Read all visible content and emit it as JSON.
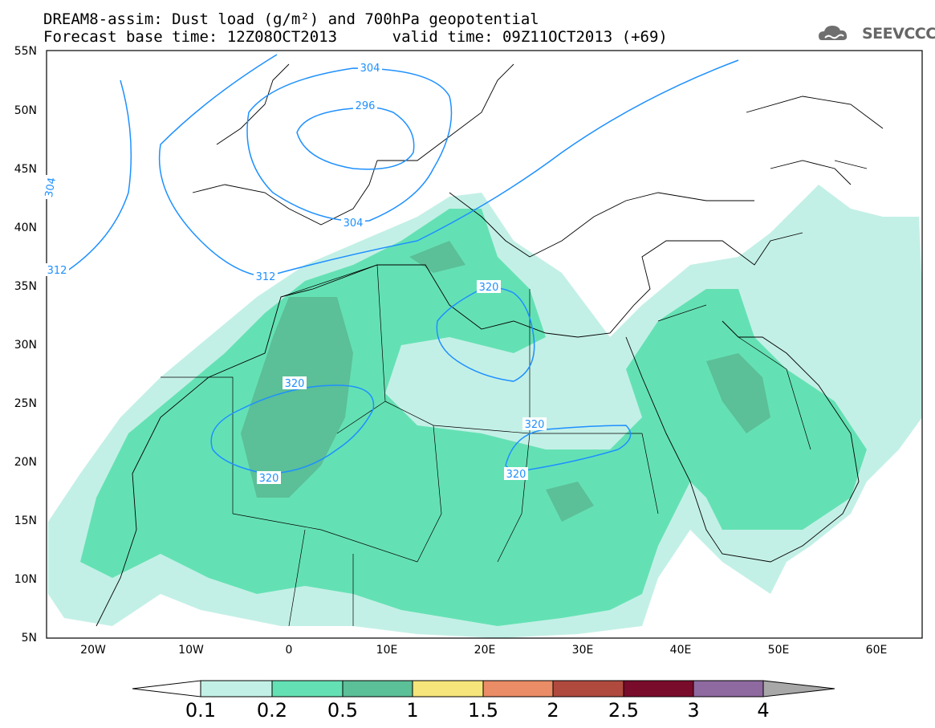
{
  "title": {
    "line1": "DREAM8-assim: Dust load (g/m²) and 700hPa geopotential",
    "line2": "Forecast base time: 12Z08OCT2013      valid time: 09Z11OCT2013 (+69)"
  },
  "logo": {
    "text": "SEEVCCC",
    "icon": "cloud-icon"
  },
  "map": {
    "lat_labels": [
      "55N",
      "50N",
      "45N",
      "40N",
      "35N",
      "30N",
      "25N",
      "20N",
      "15N",
      "10N",
      "5N"
    ],
    "lon_labels": [
      "20W",
      "10W",
      "0",
      "10E",
      "20E",
      "30E",
      "40E",
      "50E",
      "60E"
    ],
    "contour_labels": [
      "304",
      "296",
      "304",
      "304",
      "312",
      "312",
      "320",
      "320",
      "320",
      "320",
      "320"
    ]
  },
  "colorbar": {
    "levels": [
      "0.1",
      "0.2",
      "0.5",
      "1",
      "1.5",
      "2",
      "2.5",
      "3",
      "4"
    ],
    "colors": [
      "#ffffff",
      "#c3f0e6",
      "#64e1b4",
      "#5bbf97",
      "#f5e57a",
      "#ea8c66",
      "#b04a3e",
      "#7a0c2b",
      "#8e6aa0",
      "#a8a8a8"
    ]
  }
}
